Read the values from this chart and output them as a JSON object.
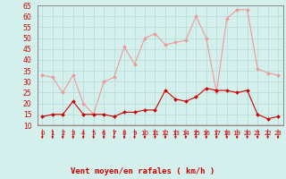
{
  "xlabel": "Vent moyen/en rafales ( km/h )",
  "background_color": "#d4f0ec",
  "grid_color": "#b8ddd8",
  "x_values": [
    0,
    1,
    2,
    3,
    4,
    5,
    6,
    7,
    8,
    9,
    10,
    11,
    12,
    13,
    14,
    15,
    16,
    17,
    18,
    19,
    20,
    21,
    22,
    23
  ],
  "wind_avg": [
    14,
    15,
    15,
    21,
    15,
    15,
    15,
    14,
    16,
    16,
    17,
    17,
    26,
    22,
    21,
    23,
    27,
    26,
    26,
    25,
    26,
    15,
    13,
    14
  ],
  "wind_gust": [
    33,
    32,
    25,
    33,
    20,
    15,
    30,
    32,
    46,
    38,
    50,
    52,
    47,
    48,
    49,
    60,
    50,
    25,
    59,
    63,
    63,
    36,
    34,
    33
  ],
  "avg_color": "#cc0000",
  "gust_color": "#ee9999",
  "ylim_min": 10,
  "ylim_max": 65,
  "yticks": [
    10,
    15,
    20,
    25,
    30,
    35,
    40,
    45,
    50,
    55,
    60,
    65
  ],
  "arrow_color": "#cc0000",
  "xlabel_color": "#cc0000",
  "tick_label_color": "#cc0000",
  "spine_color": "#888888"
}
